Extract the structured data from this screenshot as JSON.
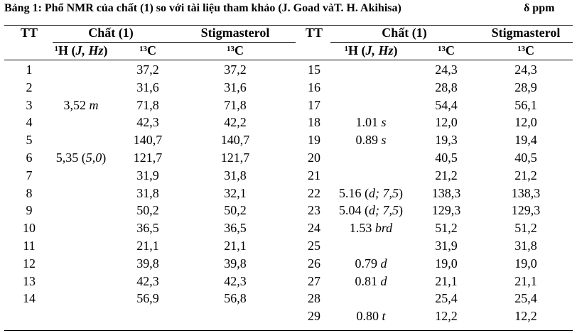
{
  "caption": {
    "title": "Bảng 1: Phổ NMR của chất (1) so với tài liệu tham khảo (J. Goad vàT. H. Akihisa)",
    "unit": "δ ppm"
  },
  "header": {
    "tt": "TT",
    "compound": "Chất (1)",
    "reference": "Stigmasterol",
    "h_iso": "1",
    "h_label": "H (",
    "h_jhz": "J, Hz",
    "h_close": ")",
    "c_iso": "13",
    "c_label": "C"
  },
  "left_rows": [
    {
      "tt": "1",
      "h": "",
      "h_note": "",
      "c": "37,2",
      "ref": "37,2"
    },
    {
      "tt": "2",
      "h": "",
      "h_note": "",
      "c": "31,6",
      "ref": "31,6"
    },
    {
      "tt": "3",
      "h": "3,52 ",
      "h_note": "m",
      "c": "71,8",
      "ref": "71,8"
    },
    {
      "tt": "4",
      "h": "",
      "h_note": "",
      "c": "42,3",
      "ref": "42,2"
    },
    {
      "tt": "5",
      "h": "",
      "h_note": "",
      "c": "140,7",
      "ref": "140,7"
    },
    {
      "tt": "6",
      "h": "5,35 (",
      "h_note": "5,0",
      "h_end": ")",
      "c": "121,7",
      "ref": "121,7"
    },
    {
      "tt": "7",
      "h": "",
      "h_note": "",
      "c": "31,9",
      "ref": "31,8"
    },
    {
      "tt": "8",
      "h": "",
      "h_note": "",
      "c": "31,8",
      "ref": "32,1"
    },
    {
      "tt": "9",
      "h": "",
      "h_note": "",
      "c": "50,2",
      "ref": "50,2"
    },
    {
      "tt": "10",
      "h": "",
      "h_note": "",
      "c": "36,5",
      "ref": "36,5"
    },
    {
      "tt": "11",
      "h": "",
      "h_note": "",
      "c": "21,1",
      "ref": "21,1"
    },
    {
      "tt": "12",
      "h": "",
      "h_note": "",
      "c": "39,8",
      "ref": "39,8"
    },
    {
      "tt": "13",
      "h": "",
      "h_note": "",
      "c": "42,3",
      "ref": "42,3"
    },
    {
      "tt": "14",
      "h": "",
      "h_note": "",
      "c": "56,9",
      "ref": "56,8"
    }
  ],
  "right_rows": [
    {
      "tt": "15",
      "h": "",
      "h_note": "",
      "c": "24,3",
      "ref": "24,3"
    },
    {
      "tt": "16",
      "h": "",
      "h_note": "",
      "c": "28,8",
      "ref": "28,9"
    },
    {
      "tt": "17",
      "h": "",
      "h_note": "",
      "c": "54,4",
      "ref": "56,1"
    },
    {
      "tt": "18",
      "h": "1.01 ",
      "h_note": "s",
      "c": "12,0",
      "ref": "12,0"
    },
    {
      "tt": "19",
      "h": "0.89 ",
      "h_note": "s",
      "c": "19,3",
      "ref": "19,4"
    },
    {
      "tt": "20",
      "h": "",
      "h_note": "",
      "c": "40,5",
      "ref": "40,5"
    },
    {
      "tt": "21",
      "h": "",
      "h_note": "",
      "c": "21,2",
      "ref": "21,2"
    },
    {
      "tt": "22",
      "h": "5.16 (",
      "h_note": "d; 7,5",
      "h_end": ")",
      "c": "138,3",
      "ref": "138,3"
    },
    {
      "tt": "23",
      "h": "5.04 (",
      "h_note": "d; 7,5",
      "h_end": ")",
      "c": "129,3",
      "ref": "129,3"
    },
    {
      "tt": "24",
      "h": "1.53 ",
      "h_note": "brd",
      "c": "51,2",
      "ref": "51,2"
    },
    {
      "tt": "25",
      "h": "",
      "h_note": "",
      "c": "31,9",
      "ref": "31,8"
    },
    {
      "tt": "26",
      "h": "0.79 ",
      "h_note": "d",
      "c": "19,0",
      "ref": "19,0"
    },
    {
      "tt": "27",
      "h": "0.81 ",
      "h_note": "d",
      "c": "21,1",
      "ref": "21,1"
    },
    {
      "tt": "28",
      "h": "",
      "h_note": "",
      "c": "25,4",
      "ref": "25,4"
    },
    {
      "tt": "29",
      "h": "0.80 ",
      "h_note": "t",
      "c": "12,2",
      "ref": "12,2"
    }
  ]
}
